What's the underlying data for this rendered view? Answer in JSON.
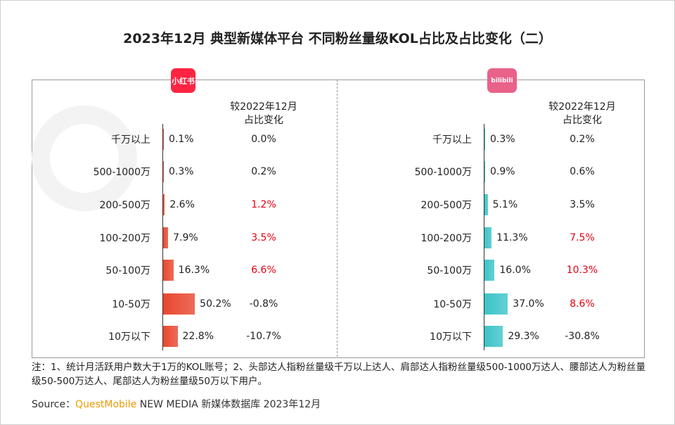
{
  "title": "2023年12月 典型新媒体平台 不同粉丝量级KOL占比及占比变化（二）",
  "watermark": "QUEST MOBILE",
  "colors": {
    "xhs_bar": "#e8472e",
    "bili_bar": "#3cc4c8",
    "positive_change": "#e60012",
    "neutral": "#222222",
    "xhs_logo": "#ff2442",
    "bili_logo": "#e9628a"
  },
  "chart_data": [
    {
      "type": "bar",
      "orientation": "horizontal",
      "platform_logo": "小红书",
      "change_header": "较2022年12月\n占比变化",
      "categories": [
        "千万以上",
        "500-1000万",
        "200-500万",
        "100-200万",
        "50-100万",
        "10-50万",
        "10万以下"
      ],
      "values": [
        0.1,
        0.3,
        2.6,
        7.9,
        16.3,
        50.2,
        22.8
      ],
      "value_labels": [
        "0.1%",
        "0.3%",
        "2.6%",
        "7.9%",
        "16.3%",
        "50.2%",
        "22.8%"
      ],
      "changes": [
        "0.0%",
        "0.2%",
        "1.2%",
        "3.5%",
        "6.6%",
        "-0.8%",
        "-10.7%"
      ],
      "highlighted": [
        false,
        false,
        true,
        true,
        true,
        false,
        false
      ]
    },
    {
      "type": "bar",
      "orientation": "horizontal",
      "platform_logo": "bilibili",
      "change_header": "较2022年12月\n占比变化",
      "categories": [
        "千万以上",
        "500-1000万",
        "200-500万",
        "100-200万",
        "50-100万",
        "10-50万",
        "10万以下"
      ],
      "values": [
        0.3,
        0.9,
        5.1,
        11.3,
        16.0,
        37.0,
        29.3
      ],
      "value_labels": [
        "0.3%",
        "0.9%",
        "5.1%",
        "11.3%",
        "16.0%",
        "37.0%",
        "29.3%"
      ],
      "changes": [
        "0.2%",
        "0.6%",
        "3.5%",
        "7.5%",
        "10.3%",
        "8.6%",
        "-30.8%"
      ],
      "highlighted": [
        false,
        false,
        false,
        true,
        true,
        true,
        false
      ]
    }
  ],
  "note": "注：1、统计月活跃用户数大于1万的KOL账号；2、头部达人指粉丝量级千万以上达人、肩部达人指粉丝量级500-1000万达人、腰部达人为粉丝量级50-500万达人、尾部达人为粉丝量级50万以下用户。",
  "source": {
    "label": "Source：",
    "brand": "QuestMobile",
    "text": " NEW MEDIA 新媒体数据库 2023年12月"
  }
}
